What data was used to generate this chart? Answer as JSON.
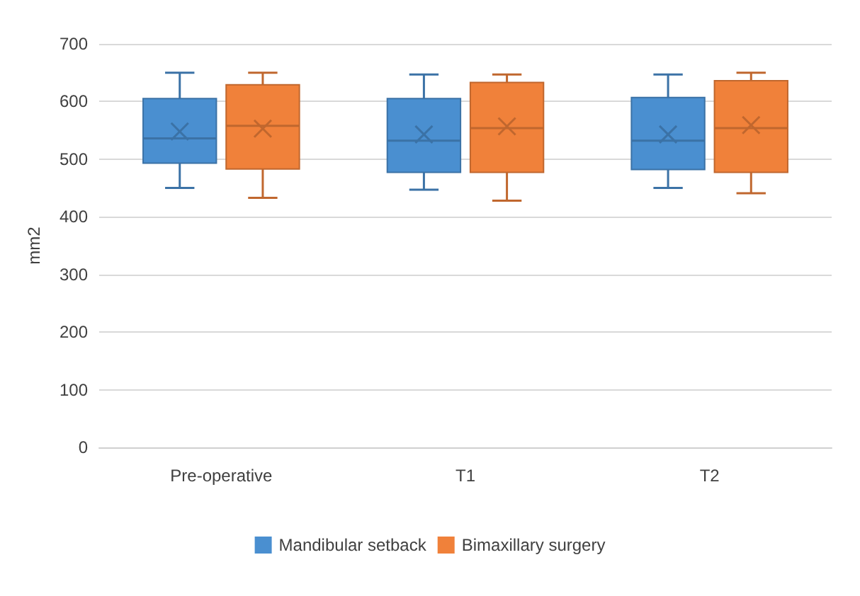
{
  "chart_data": {
    "type": "box",
    "ylabel": "mm2",
    "categories": [
      "Pre-operative",
      "T1",
      "T2"
    ],
    "series": [
      {
        "name": "Mandibular setback",
        "color": "#4a8fd0",
        "boxes": [
          {
            "low": 450,
            "q1": 493,
            "median": 536,
            "q3": 605,
            "high": 650,
            "mean": 548
          },
          {
            "low": 447,
            "q1": 477,
            "median": 532,
            "q3": 605,
            "high": 647,
            "mean": 543
          },
          {
            "low": 450,
            "q1": 482,
            "median": 532,
            "q3": 607,
            "high": 647,
            "mean": 543
          }
        ]
      },
      {
        "name": "Bimaxillary surgery",
        "color": "#f0813a",
        "boxes": [
          {
            "low": 433,
            "q1": 483,
            "median": 558,
            "q3": 629,
            "high": 650,
            "mean": 553
          },
          {
            "low": 428,
            "q1": 477,
            "median": 554,
            "q3": 633,
            "high": 647,
            "mean": 557
          },
          {
            "low": 441,
            "q1": 477,
            "median": 554,
            "q3": 636,
            "high": 650,
            "mean": 559
          }
        ]
      }
    ],
    "ylim": [
      0,
      700
    ],
    "yticks": [
      0,
      100,
      200,
      300,
      400,
      500,
      600,
      700
    ],
    "grid": "y",
    "legend": "bottom"
  }
}
